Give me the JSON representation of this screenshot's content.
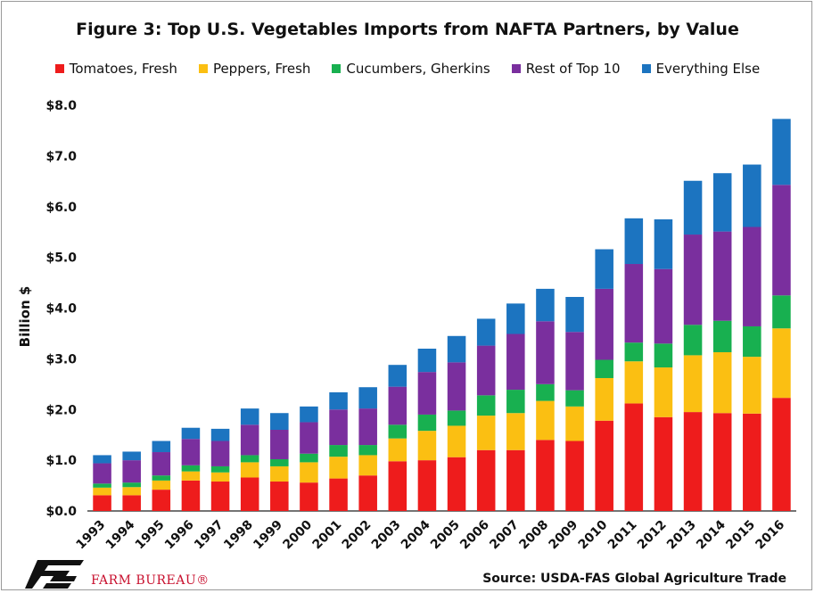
{
  "title": "Figure 3: Top U.S. Vegetables Imports from NAFTA Partners, by Value",
  "source": "Source: USDA-FAS Global Agriculture Trade",
  "logo_text": "FARM BUREAU®",
  "colors": {
    "tomatoes": "#ee1c1c",
    "peppers": "#fbbf12",
    "cucumbers": "#18b050",
    "rest": "#7a2f9e",
    "everything": "#1c74c0",
    "logo_red": "#c8102e"
  },
  "chart_data": {
    "type": "bar",
    "stacked": true,
    "title": "Figure 3: Top U.S. Vegetables Imports from NAFTA Partners, by Value",
    "xlabel": "",
    "ylabel": "Billion $",
    "ylim": [
      0,
      8
    ],
    "yticks": [
      "$0.0",
      "$1.0",
      "$2.0",
      "$3.0",
      "$4.0",
      "$5.0",
      "$6.0",
      "$7.0",
      "$8.0"
    ],
    "grid": false,
    "legend_position": "top",
    "categories": [
      "1993",
      "1994",
      "1995",
      "1996",
      "1997",
      "1998",
      "1999",
      "2000",
      "2001",
      "2002",
      "2003",
      "2004",
      "2005",
      "2006",
      "2007",
      "2008",
      "2009",
      "2010",
      "2011",
      "2012",
      "2013",
      "2014",
      "2015",
      "2016"
    ],
    "series": [
      {
        "name": "Tomatoes, Fresh",
        "color": "#ee1c1c",
        "values": [
          0.31,
          0.31,
          0.42,
          0.6,
          0.58,
          0.66,
          0.58,
          0.56,
          0.64,
          0.7,
          0.98,
          1.0,
          1.06,
          1.2,
          1.2,
          1.4,
          1.38,
          1.78,
          2.12,
          1.85,
          1.95,
          1.93,
          1.92,
          2.23
        ]
      },
      {
        "name": "Peppers, Fresh",
        "color": "#fbbf12",
        "values": [
          0.15,
          0.16,
          0.18,
          0.18,
          0.18,
          0.3,
          0.3,
          0.4,
          0.43,
          0.4,
          0.45,
          0.58,
          0.62,
          0.68,
          0.73,
          0.77,
          0.68,
          0.84,
          0.83,
          0.98,
          1.12,
          1.2,
          1.12,
          1.37
        ]
      },
      {
        "name": "Cucumbers, Gherkins",
        "color": "#18b050",
        "values": [
          0.08,
          0.09,
          0.1,
          0.12,
          0.12,
          0.14,
          0.14,
          0.17,
          0.23,
          0.2,
          0.27,
          0.32,
          0.3,
          0.4,
          0.46,
          0.33,
          0.32,
          0.36,
          0.37,
          0.47,
          0.6,
          0.62,
          0.6,
          0.65
        ]
      },
      {
        "name": "Rest of Top 10",
        "color": "#7a2f9e",
        "values": [
          0.4,
          0.44,
          0.46,
          0.52,
          0.5,
          0.6,
          0.58,
          0.62,
          0.7,
          0.72,
          0.75,
          0.84,
          0.95,
          0.98,
          1.1,
          1.24,
          1.15,
          1.4,
          1.55,
          1.47,
          1.78,
          1.76,
          1.96,
          2.18
        ]
      },
      {
        "name": "Everything Else",
        "color": "#1c74c0",
        "values": [
          0.16,
          0.17,
          0.22,
          0.22,
          0.24,
          0.32,
          0.33,
          0.31,
          0.34,
          0.42,
          0.43,
          0.46,
          0.52,
          0.53,
          0.6,
          0.64,
          0.69,
          0.78,
          0.9,
          0.98,
          1.06,
          1.15,
          1.23,
          1.3
        ]
      }
    ]
  }
}
